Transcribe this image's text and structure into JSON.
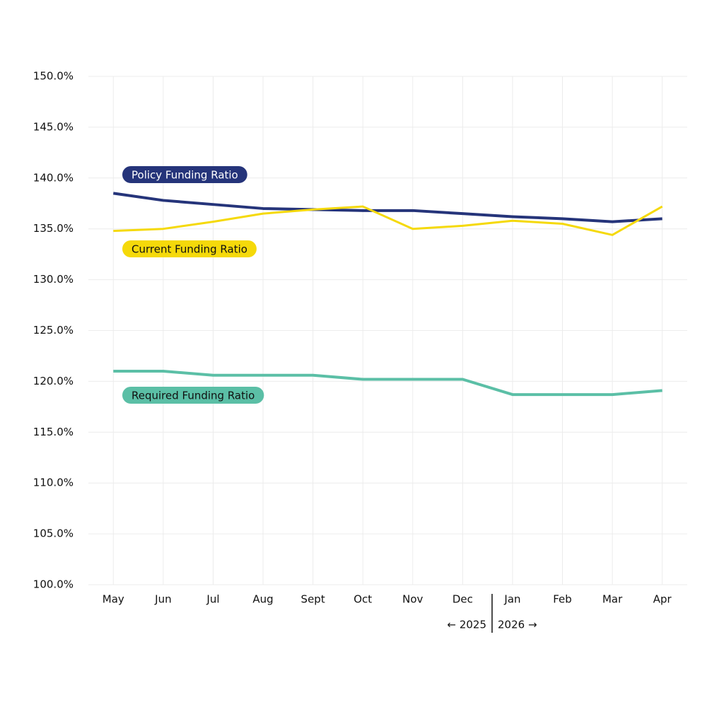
{
  "chart_data": {
    "type": "line",
    "categories": [
      "May",
      "Jun",
      "Jul",
      "Aug",
      "Sept",
      "Oct",
      "Nov",
      "Dec",
      "Jan",
      "Feb",
      "Mar",
      "Apr"
    ],
    "series": [
      {
        "name": "Policy Funding Ratio",
        "color": "#25347a",
        "values": [
          138.5,
          137.8,
          137.4,
          137.0,
          136.9,
          136.8,
          136.8,
          136.5,
          136.2,
          136.0,
          135.7,
          136.0
        ]
      },
      {
        "name": "Current Funding Ratio",
        "color": "#f5d90a",
        "values": [
          134.8,
          135.0,
          135.7,
          136.5,
          136.9,
          137.2,
          135.0,
          135.3,
          135.8,
          135.5,
          134.4,
          137.2
        ]
      },
      {
        "name": "Required Funding Ratio",
        "color": "#5bbfa6",
        "values": [
          121.0,
          121.0,
          120.6,
          120.6,
          120.6,
          120.2,
          120.2,
          120.2,
          118.7,
          118.7,
          118.7,
          119.1
        ]
      }
    ],
    "ylim": [
      100,
      150
    ],
    "yticks": [
      {
        "value": 100,
        "label": "100.0%"
      },
      {
        "value": 105,
        "label": "105.0%"
      },
      {
        "value": 110,
        "label": "110.0%"
      },
      {
        "value": 115,
        "label": "115.0%"
      },
      {
        "value": 120,
        "label": "120.0%"
      },
      {
        "value": 125,
        "label": "125.0%"
      },
      {
        "value": 130,
        "label": "130.0%"
      },
      {
        "value": 135,
        "label": "135.0%"
      },
      {
        "value": 140,
        "label": "140.0%"
      },
      {
        "value": 145,
        "label": "145.0%"
      },
      {
        "value": 150,
        "label": "150.0%"
      }
    ],
    "grid": true,
    "annotations": [
      "← 2025",
      "2026 →"
    ]
  }
}
